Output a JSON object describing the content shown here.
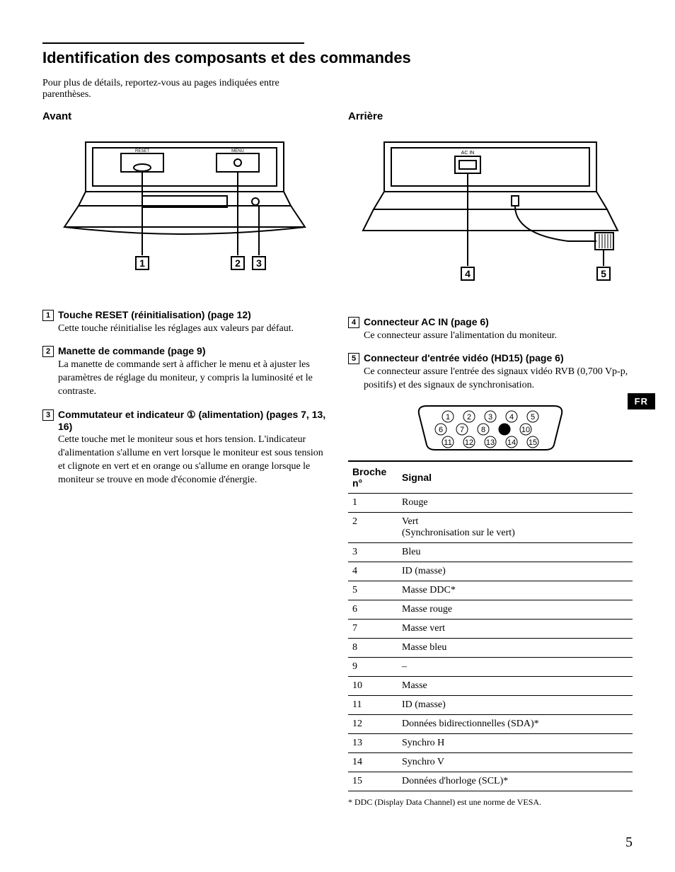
{
  "title": "Identification des composants et des commandes",
  "intro": "Pour plus de détails, reportez-vous au pages indiquées entre parenthèses.",
  "left": {
    "heading": "Avant",
    "items": [
      {
        "num": "1",
        "title": "Touche RESET (réinitialisation) (page 12)",
        "body": "Cette touche réinitialise les réglages aux valeurs par défaut."
      },
      {
        "num": "2",
        "title": "Manette de commande (page 9)",
        "body": "La manette de commande sert à afficher le menu et à ajuster les paramètres de réglage du moniteur, y compris la luminosité et le contraste."
      },
      {
        "num": "3",
        "title": "Commutateur et indicateur ① (alimentation) (pages 7, 13, 16)",
        "body": "Cette touche met le moniteur sous et hors tension. L'indicateur d'alimentation s'allume en vert lorsque le moniteur est sous tension et clignote en vert et en orange ou s'allume en orange lorsque le moniteur se trouve en mode d'économie d'énergie."
      }
    ]
  },
  "right": {
    "heading": "Arrière",
    "items": [
      {
        "num": "4",
        "title": "Connecteur AC IN (page 6)",
        "body": "Ce connecteur assure l'alimentation du moniteur."
      },
      {
        "num": "5",
        "title": "Connecteur d'entrée vidéo (HD15) (page 6)",
        "body": "Ce connecteur assure l'entrée des signaux vidéo RVB (0,700 Vp-p, positifs) et des signaux de synchronisation."
      }
    ]
  },
  "table": {
    "headers": [
      "Broche n°",
      "Signal"
    ],
    "rows": [
      [
        "1",
        "Rouge"
      ],
      [
        "2",
        "Vert\n(Synchronisation sur le vert)"
      ],
      [
        "3",
        "Bleu"
      ],
      [
        "4",
        "ID (masse)"
      ],
      [
        "5",
        "Masse DDC*"
      ],
      [
        "6",
        "Masse rouge"
      ],
      [
        "7",
        "Masse vert"
      ],
      [
        "8",
        "Masse bleu"
      ],
      [
        "9",
        "–"
      ],
      [
        "10",
        "Masse"
      ],
      [
        "11",
        "ID (masse)"
      ],
      [
        "12",
        "Données bidirectionnelles (SDA)*"
      ],
      [
        "13",
        "Synchro H"
      ],
      [
        "14",
        "Synchro V"
      ],
      [
        "15",
        "Données d'horloge (SCL)*"
      ]
    ]
  },
  "footnote": "* DDC (Display Data Channel) est une norme de VESA.",
  "lang_tab": "FR",
  "page_number": "5"
}
